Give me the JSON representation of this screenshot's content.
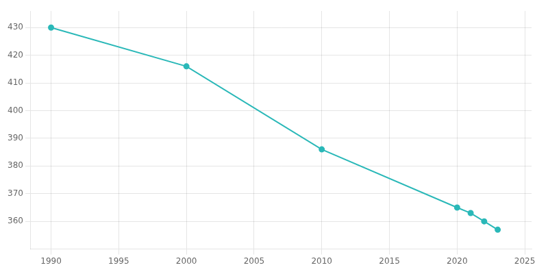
{
  "chart_data": {
    "type": "line",
    "x": [
      1990,
      2000,
      2010,
      2020,
      2021,
      2022,
      2023
    ],
    "values": [
      430,
      416,
      386,
      365,
      363,
      360,
      357
    ],
    "color": "#2ab8b8",
    "marker": "circle",
    "xlim": [
      1988.5,
      2025.5
    ],
    "xticks": [
      1990,
      1995,
      2000,
      2005,
      2010,
      2015,
      2020,
      2025
    ],
    "ylim": [
      350,
      436
    ],
    "yticks": [
      360,
      370,
      380,
      390,
      400,
      410,
      420,
      430
    ],
    "grid": true
  }
}
